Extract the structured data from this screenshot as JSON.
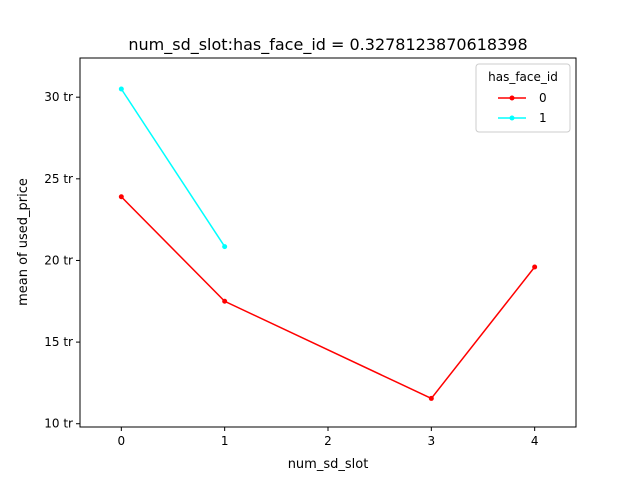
{
  "chart_data": {
    "type": "line",
    "title": "num_sd_slot:has_face_id = 0.3278123870618398",
    "xlabel": "num_sd_slot",
    "ylabel": "mean of used_price",
    "xlim": [
      -0.4,
      4.4
    ],
    "ylim": [
      9.8,
      32.4
    ],
    "xticks": [
      0,
      1,
      2,
      3,
      4
    ],
    "xtick_labels": [
      "0",
      "1",
      "2",
      "3",
      "4"
    ],
    "yticks": [
      10,
      15,
      20,
      25,
      30
    ],
    "ytick_labels": [
      "10 tr",
      "15 tr",
      "20 tr",
      "25 tr",
      "30 tr"
    ],
    "grid": false,
    "legend": {
      "title": "has_face_id",
      "position": "top-right"
    },
    "series": [
      {
        "name": "0",
        "color": "#ff0000",
        "x": [
          0,
          1,
          3,
          4
        ],
        "y": [
          23.9,
          17.5,
          11.55,
          19.6
        ]
      },
      {
        "name": "1",
        "color": "#00ffff",
        "x": [
          0,
          1
        ],
        "y": [
          30.5,
          20.85
        ]
      }
    ]
  }
}
